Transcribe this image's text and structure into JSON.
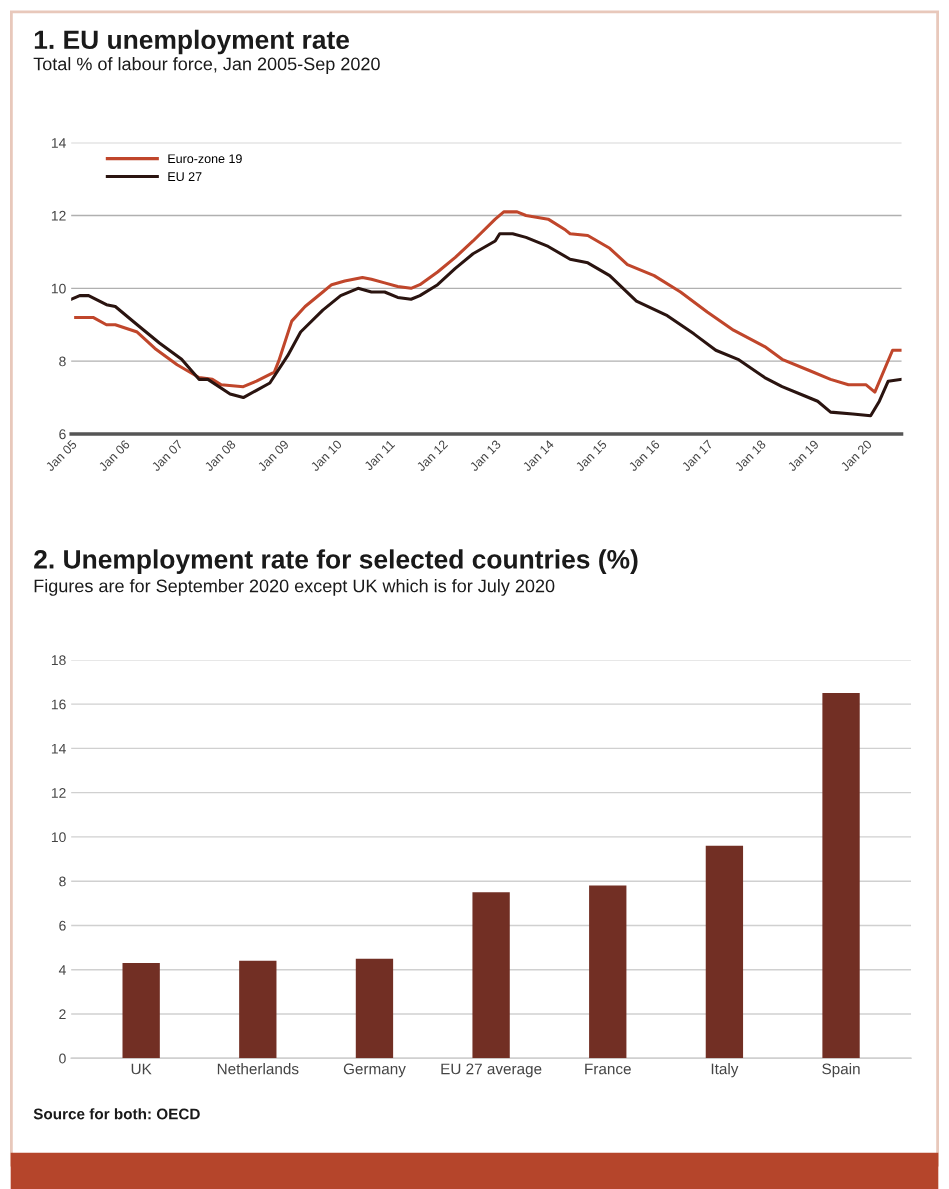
{
  "chart_data": [
    {
      "type": "line",
      "title": "1. EU unemployment rate",
      "subtitle": "Total % of labour force, Jan 2005-Sep 2020",
      "xlim": [
        "2005-01",
        "2020-09"
      ],
      "xticks": [
        {
          "value": "2005-01",
          "label": "Jan 05"
        },
        {
          "value": "2006-01",
          "label": "Jan 06"
        },
        {
          "value": "2007-01",
          "label": "Jan 07"
        },
        {
          "value": "2008-01",
          "label": "Jan 08"
        },
        {
          "value": "2009-01",
          "label": "Jan 09"
        },
        {
          "value": "2010-01",
          "label": "Jan 10"
        },
        {
          "value": "2011-01",
          "label": "Jan 11"
        },
        {
          "value": "2012-01",
          "label": "Jan 12"
        },
        {
          "value": "2013-01",
          "label": "Jan 13"
        },
        {
          "value": "2014-01",
          "label": "Jan 14"
        },
        {
          "value": "2015-01",
          "label": "Jan 15"
        },
        {
          "value": "2016-01",
          "label": "Jan 16"
        },
        {
          "value": "2017-01",
          "label": "Jan 17"
        },
        {
          "value": "2018-01",
          "label": "Jan 18"
        },
        {
          "value": "2019-01",
          "label": "Jan 19"
        },
        {
          "value": "2020-01",
          "label": "Jan 20"
        }
      ],
      "ylim": [
        6,
        14
      ],
      "yticks": [
        6,
        8,
        10,
        12,
        14
      ],
      "grid": "y",
      "legend": "top left",
      "line_style": "solid",
      "marker": "none",
      "series": [
        {
          "name": "Euro-zone 19",
          "color": "#c0462b",
          "x": [
            "2005-02",
            "2005-06",
            "2005-09",
            "2005-11",
            "2006-04",
            "2006-08",
            "2007-01",
            "2007-06",
            "2007-09",
            "2007-11",
            "2008-04",
            "2008-07",
            "2008-11",
            "2008-12",
            "2009-03",
            "2009-06",
            "2009-10",
            "2009-12",
            "2010-03",
            "2010-07",
            "2010-09",
            "2010-12",
            "2011-03",
            "2011-06",
            "2011-08",
            "2011-12",
            "2012-04",
            "2012-08",
            "2013-01",
            "2013-03",
            "2013-06",
            "2013-08",
            "2014-01",
            "2014-05",
            "2014-06",
            "2014-10",
            "2015-03",
            "2015-07",
            "2016-01",
            "2016-07",
            "2017-01",
            "2017-07",
            "2018-02",
            "2018-06",
            "2018-12",
            "2019-05",
            "2019-09",
            "2020-01",
            "2020-03",
            "2020-07",
            "2020-09"
          ],
          "values": [
            9.2,
            9.2,
            9.0,
            9.0,
            8.8,
            8.35,
            7.9,
            7.55,
            7.5,
            7.35,
            7.3,
            7.45,
            7.7,
            8.0,
            9.1,
            9.5,
            9.9,
            10.1,
            10.2,
            10.3,
            10.25,
            10.15,
            10.05,
            10.0,
            10.1,
            10.45,
            10.85,
            11.3,
            11.9,
            12.1,
            12.1,
            12.0,
            11.9,
            11.6,
            11.5,
            11.45,
            11.1,
            10.65,
            10.35,
            9.9,
            9.35,
            8.85,
            8.4,
            8.05,
            7.75,
            7.5,
            7.35,
            7.35,
            7.15,
            8.3,
            8.3
          ]
        },
        {
          "name": "EU 27",
          "color": "#2a1410",
          "x": [
            "2005-01",
            "2005-03",
            "2005-05",
            "2005-09",
            "2005-11",
            "2006-04",
            "2006-09",
            "2007-02",
            "2007-06",
            "2007-08",
            "2008-01",
            "2008-04",
            "2008-07",
            "2008-10",
            "2009-02",
            "2009-05",
            "2009-10",
            "2010-02",
            "2010-06",
            "2010-09",
            "2010-12",
            "2011-03",
            "2011-06",
            "2011-08",
            "2011-12",
            "2012-04",
            "2012-08",
            "2013-01",
            "2013-02",
            "2013-05",
            "2013-08",
            "2014-01",
            "2014-06",
            "2014-10",
            "2015-03",
            "2015-09",
            "2016-04",
            "2016-10",
            "2017-03",
            "2017-08",
            "2018-02",
            "2018-06",
            "2018-11",
            "2019-02",
            "2019-05",
            "2019-10",
            "2020-02",
            "2020-04",
            "2020-06",
            "2020-09"
          ],
          "values": [
            9.7,
            9.8,
            9.8,
            9.55,
            9.5,
            9.0,
            8.5,
            8.05,
            7.5,
            7.5,
            7.1,
            7.0,
            7.2,
            7.4,
            8.15,
            8.8,
            9.4,
            9.8,
            10.0,
            9.9,
            9.9,
            9.75,
            9.7,
            9.8,
            10.1,
            10.55,
            10.95,
            11.3,
            11.5,
            11.5,
            11.4,
            11.15,
            10.8,
            10.7,
            10.35,
            9.65,
            9.25,
            8.75,
            8.3,
            8.05,
            7.55,
            7.3,
            7.05,
            6.9,
            6.6,
            6.55,
            6.5,
            6.9,
            7.45,
            7.5
          ]
        }
      ]
    },
    {
      "type": "bar",
      "title": "2. Unemployment rate for selected countries (%)",
      "subtitle": "Figures are for September 2020 except UK which is for July 2020",
      "categories": [
        "UK",
        "Netherlands",
        "Germany",
        "EU 27 average",
        "France",
        "Italy",
        "Spain"
      ],
      "values": [
        4.3,
        4.4,
        4.5,
        7.5,
        7.8,
        9.6,
        16.5
      ],
      "color": "#722f24",
      "ylim": [
        0,
        18
      ],
      "yticks": [
        0,
        2,
        4,
        6,
        8,
        10,
        12,
        14,
        16,
        18
      ],
      "grid": "y",
      "annotations": [
        "Source for both: OECD"
      ]
    }
  ]
}
